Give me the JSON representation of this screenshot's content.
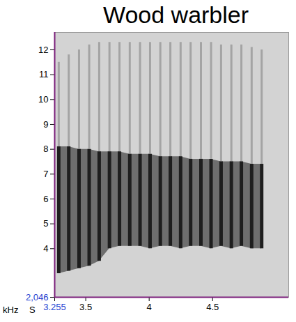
{
  "chart_data": {
    "type": "spectrogram",
    "title": "Wood warbler",
    "x_label": "S",
    "y_label": "kHz",
    "x": [
      3.287,
      3.366,
      3.447,
      3.527,
      3.606,
      3.687,
      3.766,
      3.847,
      3.928,
      4.007,
      4.088,
      4.167,
      4.248,
      4.327,
      4.408,
      4.488,
      4.567,
      4.648,
      4.727,
      4.808,
      4.887
    ],
    "low": [
      3.0,
      3.1,
      3.2,
      3.3,
      3.5,
      4.0,
      4.1,
      4.1,
      4.1,
      4.0,
      4.1,
      4.1,
      4.0,
      4.1,
      4.1,
      4.0,
      4.1,
      4.0,
      4.1,
      4.0,
      4.0
    ],
    "high": [
      8.1,
      8.1,
      8.0,
      8.0,
      7.9,
      7.9,
      7.9,
      7.8,
      7.8,
      7.8,
      7.7,
      7.7,
      7.7,
      7.6,
      7.6,
      7.6,
      7.5,
      7.5,
      7.5,
      7.4,
      7.4
    ],
    "faint_high": [
      11.5,
      11.8,
      12.0,
      12.2,
      12.3,
      12.3,
      12.3,
      12.3,
      12.3,
      12.3,
      12.3,
      12.3,
      12.3,
      12.3,
      12.3,
      12.3,
      12.2,
      12.2,
      12.2,
      12.1,
      12.0
    ],
    "color": "#1e1e1e",
    "xlim": [
      3.255,
      5.1
    ],
    "xticks": [
      3.255,
      3.5,
      4,
      4.5
    ],
    "ylim": [
      2.046,
      12.7
    ],
    "yticks": [
      {
        "value": 2.046,
        "label": "2,046"
      },
      4,
      5,
      6,
      7,
      8,
      9,
      10,
      11,
      12
    ],
    "grid": false
  }
}
